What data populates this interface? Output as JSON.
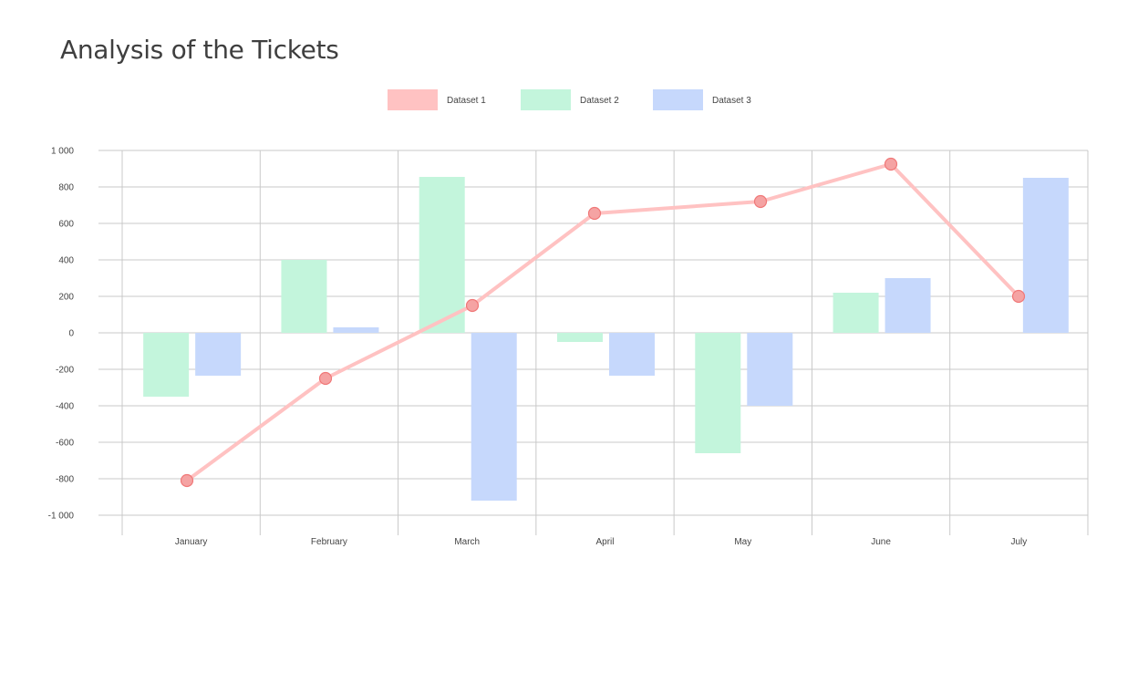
{
  "title": "Analysis of the Tickets",
  "chart_data": {
    "type": "bar",
    "categories": [
      "January",
      "February",
      "March",
      "April",
      "May",
      "June",
      "July"
    ],
    "ylim": [
      -1000,
      1000
    ],
    "yticks": [
      1000,
      800,
      600,
      400,
      200,
      0,
      -200,
      -400,
      -600,
      -800,
      -1000
    ],
    "ytick_labels": [
      "1 000",
      "800",
      "600",
      "400",
      "200",
      "0",
      "-200",
      "-400",
      "-600",
      "-800",
      "-1 000"
    ],
    "grid": true,
    "legend_position": "top-center",
    "series": [
      {
        "name": "Dataset 1",
        "type": "line",
        "color": "#ffc2c2",
        "marker_color": "#f5a3a3",
        "marker_stroke": "#f07878",
        "values": [
          -810,
          -250,
          150,
          655,
          720,
          925,
          200
        ]
      },
      {
        "name": "Dataset 2",
        "type": "bar",
        "color": "#c3f5dc",
        "values": [
          -350,
          400,
          855,
          -50,
          -660,
          220,
          null
        ]
      },
      {
        "name": "Dataset 3",
        "type": "bar",
        "color": "#c6d8fc",
        "values": [
          -235,
          30,
          -920,
          -235,
          -400,
          300,
          850
        ]
      }
    ]
  }
}
